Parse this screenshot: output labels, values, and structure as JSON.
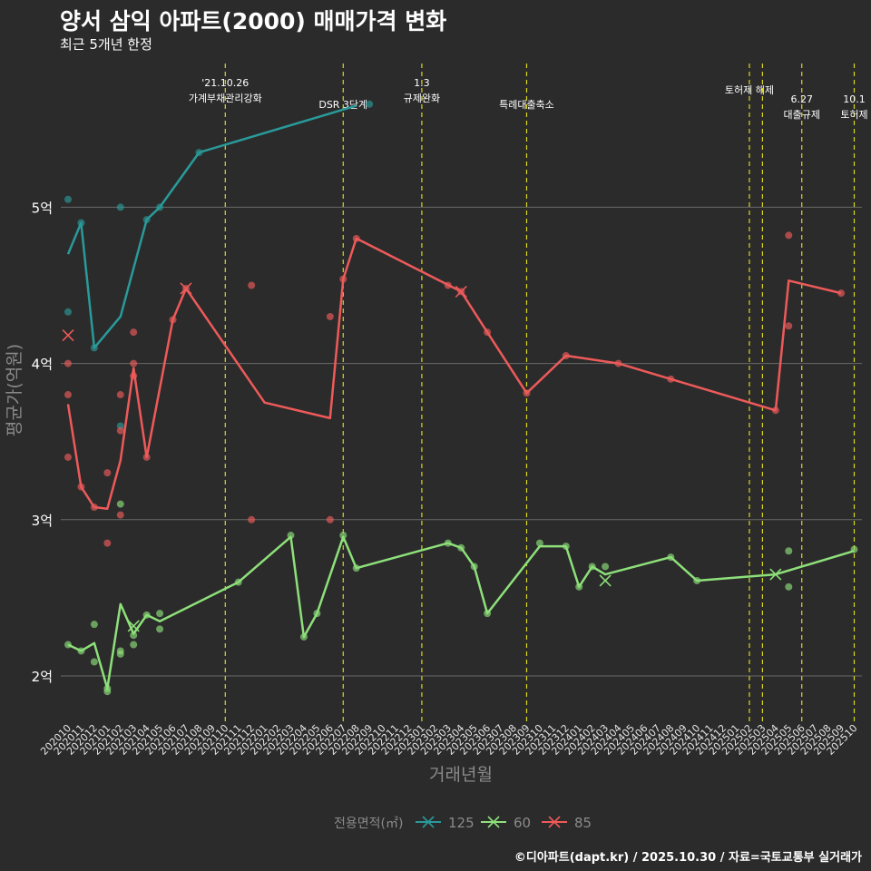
{
  "header": {
    "title": "양서 삼익 아파트(2000) 매매가격 변화",
    "subtitle": "최근 5개년 한정"
  },
  "footer": {
    "credit": "©디아파트(dapt.kr) / 2025.10.30 / 자료=국토교통부 실거래가"
  },
  "chart_data": {
    "type": "line",
    "title": "양서 삼익 아파트(2000) 매매가격 변화",
    "subtitle": "최근 5개년 한정",
    "xlabel": "거래년월",
    "ylabel": "평균가(억원)",
    "ylim": [
      1.7,
      5.9
    ],
    "yticks": [
      {
        "value": 2,
        "label": "2억"
      },
      {
        "value": 3,
        "label": "3억"
      },
      {
        "value": 4,
        "label": "4억"
      },
      {
        "value": 5,
        "label": "5억"
      }
    ],
    "x_categories": [
      "202010",
      "202011",
      "202012",
      "202101",
      "202102",
      "202103",
      "202104",
      "202105",
      "202106",
      "202107",
      "202108",
      "202109",
      "202110",
      "202111",
      "202112",
      "202201",
      "202202",
      "202203",
      "202204",
      "202205",
      "202206",
      "202207",
      "202208",
      "202209",
      "202210",
      "202211",
      "202212",
      "202301",
      "202302",
      "202303",
      "202304",
      "202305",
      "202306",
      "202307",
      "202308",
      "202309",
      "202310",
      "202311",
      "202312",
      "202401",
      "202402",
      "202403",
      "202404",
      "202405",
      "202406",
      "202407",
      "202408",
      "202409",
      "202410",
      "202411",
      "202412",
      "202501",
      "202502",
      "202503",
      "202504",
      "202505",
      "202506",
      "202507",
      "202508",
      "202509",
      "202510"
    ],
    "legend": {
      "title": "전용면적(㎡)",
      "position": "bottom",
      "items": [
        {
          "label": "125",
          "color": "#2a9a9a"
        },
        {
          "label": "60",
          "color": "#8ee07a"
        },
        {
          "label": "85",
          "color": "#ee5a5a"
        }
      ]
    },
    "events": [
      {
        "x": "202110",
        "lines": [
          "'21.10.26",
          "가계부채관리강화"
        ],
        "level": 1
      },
      {
        "x": "202207",
        "lines": [
          "DSR 3단계"
        ],
        "level": 2
      },
      {
        "x": "202301",
        "lines": [
          "1.3",
          "규제완화"
        ],
        "level": 1
      },
      {
        "x": "202309",
        "lines": [
          "특례대출축소"
        ],
        "level": 2
      },
      {
        "x": "202502",
        "lines": [
          "토허제 해제"
        ],
        "level": 1.5
      },
      {
        "x": "202503",
        "lines": [],
        "level": 1
      },
      {
        "x": "202506",
        "lines": [
          "6.27",
          "대출규제"
        ],
        "level": 2
      },
      {
        "x": "202510",
        "lines": [
          "10.1",
          "토허제"
        ],
        "level": 2
      }
    ],
    "series": [
      {
        "name": "125",
        "color": "#2a9a9a",
        "line": [
          [
            "202010",
            4.7
          ],
          [
            "202011",
            4.9
          ],
          [
            "202012",
            4.1
          ],
          [
            "202102",
            4.3
          ],
          [
            "202104",
            4.92
          ],
          [
            "202105",
            5.0
          ],
          [
            "202108",
            5.35
          ],
          [
            "202208",
            5.65
          ]
        ],
        "points": [
          [
            "202010",
            5.05
          ],
          [
            "202010",
            4.33
          ],
          [
            "202011",
            4.9
          ],
          [
            "202012",
            4.1
          ],
          [
            "202102",
            5.0
          ],
          [
            "202102",
            3.6
          ],
          [
            "202104",
            4.92
          ],
          [
            "202105",
            5.0
          ],
          [
            "202108",
            5.35
          ],
          [
            "202209",
            5.66
          ]
        ],
        "crosses": []
      },
      {
        "name": "60",
        "color": "#8ee07a",
        "line": [
          [
            "202010",
            2.2
          ],
          [
            "202011",
            2.16
          ],
          [
            "202012",
            2.21
          ],
          [
            "202101",
            1.92
          ],
          [
            "202102",
            2.46
          ],
          [
            "202103",
            2.27
          ],
          [
            "202104",
            2.39
          ],
          [
            "202105",
            2.35
          ],
          [
            "202111",
            2.6
          ],
          [
            "202203",
            2.89
          ],
          [
            "202204",
            2.25
          ],
          [
            "202205",
            2.4
          ],
          [
            "202207",
            2.89
          ],
          [
            "202208",
            2.69
          ],
          [
            "202303",
            2.85
          ],
          [
            "202304",
            2.82
          ],
          [
            "202305",
            2.7
          ],
          [
            "202306",
            2.4
          ],
          [
            "202310",
            2.83
          ],
          [
            "202312",
            2.83
          ],
          [
            "202401",
            2.57
          ],
          [
            "202402",
            2.7
          ],
          [
            "202403",
            2.65
          ],
          [
            "202408",
            2.76
          ],
          [
            "202410",
            2.61
          ],
          [
            "202504",
            2.65
          ],
          [
            "202510",
            2.8
          ]
        ],
        "points": [
          [
            "202010",
            2.2
          ],
          [
            "202011",
            2.16
          ],
          [
            "202012",
            2.33
          ],
          [
            "202012",
            2.09
          ],
          [
            "202101",
            1.92
          ],
          [
            "202101",
            1.9
          ],
          [
            "202102",
            3.1
          ],
          [
            "202102",
            2.16
          ],
          [
            "202102",
            2.14
          ],
          [
            "202103",
            2.2
          ],
          [
            "202103",
            2.26
          ],
          [
            "202104",
            2.39
          ],
          [
            "202105",
            2.4
          ],
          [
            "202105",
            2.3
          ],
          [
            "202111",
            2.6
          ],
          [
            "202203",
            2.9
          ],
          [
            "202204",
            2.25
          ],
          [
            "202205",
            2.4
          ],
          [
            "202207",
            2.9
          ],
          [
            "202208",
            2.69
          ],
          [
            "202303",
            2.85
          ],
          [
            "202304",
            2.82
          ],
          [
            "202305",
            2.7
          ],
          [
            "202306",
            2.4
          ],
          [
            "202310",
            2.85
          ],
          [
            "202312",
            2.83
          ],
          [
            "202401",
            2.57
          ],
          [
            "202402",
            2.7
          ],
          [
            "202403",
            2.7
          ],
          [
            "202408",
            2.76
          ],
          [
            "202410",
            2.61
          ],
          [
            "202505",
            2.8
          ],
          [
            "202505",
            2.57
          ],
          [
            "202510",
            2.81
          ]
        ],
        "crosses": [
          [
            "202103",
            2.32
          ],
          [
            "202403",
            2.61
          ],
          [
            "202504",
            2.65
          ]
        ]
      },
      {
        "name": "85",
        "color": "#ee5a5a",
        "line": [
          [
            "202010",
            3.74
          ],
          [
            "202011",
            3.21
          ],
          [
            "202012",
            3.08
          ],
          [
            "202101",
            3.07
          ],
          [
            "202102",
            3.38
          ],
          [
            "202103",
            3.97
          ],
          [
            "202104",
            3.4
          ],
          [
            "202106",
            4.28
          ],
          [
            "202107",
            4.48
          ],
          [
            "202201",
            3.75
          ],
          [
            "202206",
            3.65
          ],
          [
            "202207",
            4.54
          ],
          [
            "202208",
            4.8
          ],
          [
            "202304",
            4.46
          ],
          [
            "202306",
            4.2
          ],
          [
            "202309",
            3.81
          ],
          [
            "202312",
            4.05
          ],
          [
            "202404",
            4.0
          ],
          [
            "202408",
            3.9
          ],
          [
            "202504",
            3.7
          ],
          [
            "202505",
            4.53
          ],
          [
            "202509",
            4.45
          ]
        ],
        "points": [
          [
            "202010",
            4.0
          ],
          [
            "202010",
            3.8
          ],
          [
            "202010",
            3.4
          ],
          [
            "202011",
            3.21
          ],
          [
            "202012",
            3.08
          ],
          [
            "202101",
            3.3
          ],
          [
            "202101",
            2.85
          ],
          [
            "202102",
            3.8
          ],
          [
            "202102",
            3.57
          ],
          [
            "202102",
            3.03
          ],
          [
            "202103",
            4.2
          ],
          [
            "202103",
            4.0
          ],
          [
            "202103",
            3.92
          ],
          [
            "202104",
            3.4
          ],
          [
            "202106",
            4.28
          ],
          [
            "202107",
            4.48
          ],
          [
            "202112",
            4.5
          ],
          [
            "202112",
            3.0
          ],
          [
            "202206",
            4.3
          ],
          [
            "202206",
            3.0
          ],
          [
            "202207",
            4.54
          ],
          [
            "202208",
            4.8
          ],
          [
            "202303",
            4.5
          ],
          [
            "202304",
            4.46
          ],
          [
            "202306",
            4.2
          ],
          [
            "202309",
            3.81
          ],
          [
            "202312",
            4.05
          ],
          [
            "202404",
            4.0
          ],
          [
            "202408",
            3.9
          ],
          [
            "202504",
            3.7
          ],
          [
            "202505",
            4.82
          ],
          [
            "202505",
            4.24
          ],
          [
            "202509",
            4.45
          ]
        ],
        "crosses": [
          [
            "202010",
            4.18
          ],
          [
            "202107",
            4.48
          ],
          [
            "202304",
            4.46
          ]
        ]
      }
    ]
  }
}
